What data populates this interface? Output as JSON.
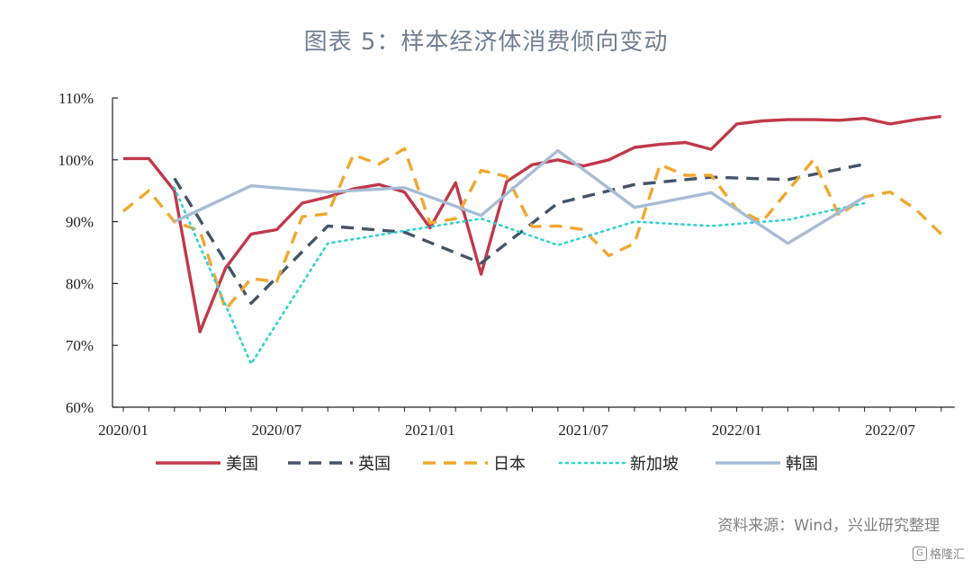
{
  "title": "图表 5：样本经济体消费倾向变动",
  "source": "资料来源：Wind，兴业研究整理",
  "watermark": "格隆汇",
  "chart_data": {
    "type": "line",
    "x_tick_labels": [
      "2020/01",
      "2020/07",
      "2021/01",
      "2021/07",
      "2022/01",
      "2022/07"
    ],
    "y_tick_labels": [
      "60%",
      "70%",
      "80%",
      "90%",
      "100%",
      "110%"
    ],
    "ylim": [
      60,
      110
    ],
    "y_unit": "%",
    "x_range_months": [
      "2020-01",
      "2022-09"
    ],
    "legend_position": "bottom",
    "grid": false,
    "series": [
      {
        "name": "美国",
        "color": "#c0394a",
        "style": "solid",
        "x": [
          "2020-01",
          "2020-02",
          "2020-03",
          "2020-04",
          "2020-05",
          "2020-06",
          "2020-07",
          "2020-08",
          "2020-09",
          "2020-10",
          "2020-11",
          "2020-12",
          "2021-01",
          "2021-02",
          "2021-03",
          "2021-04",
          "2021-05",
          "2021-06",
          "2021-07",
          "2021-08",
          "2021-09",
          "2021-10",
          "2021-11",
          "2021-12",
          "2022-01",
          "2022-02",
          "2022-03",
          "2022-04",
          "2022-05",
          "2022-06",
          "2022-07",
          "2022-08",
          "2022-09"
        ],
        "values": [
          100.2,
          100.2,
          95,
          72.2,
          82.5,
          88,
          88.7,
          93,
          94,
          95.3,
          96,
          94.8,
          89,
          96.3,
          81.5,
          96.5,
          99.2,
          100,
          99,
          100,
          102,
          102.5,
          102.8,
          101.7,
          105.8,
          106.3,
          106.5,
          106.5,
          106.4,
          106.7,
          105.8,
          106.5,
          107
        ]
      },
      {
        "name": "英国",
        "color": "#44546a",
        "style": "dashed",
        "x": [
          "2020-03",
          "2020-06",
          "2020-09",
          "2020-12",
          "2021-03",
          "2021-06",
          "2021-09",
          "2021-12",
          "2022-03",
          "2022-06"
        ],
        "values": [
          97,
          76.8,
          89.3,
          88.3,
          83.3,
          93,
          96,
          97.2,
          96.8,
          99.3
        ]
      },
      {
        "name": "日本",
        "color": "#f0a830",
        "style": "dashed",
        "x": [
          "2020-01",
          "2020-02",
          "2020-03",
          "2020-04",
          "2020-05",
          "2020-06",
          "2020-07",
          "2020-08",
          "2020-09",
          "2020-10",
          "2020-11",
          "2020-12",
          "2021-01",
          "2021-02",
          "2021-03",
          "2021-04",
          "2021-05",
          "2021-06",
          "2021-07",
          "2021-08",
          "2021-09",
          "2021-10",
          "2021-11",
          "2021-12",
          "2022-01",
          "2022-02",
          "2022-03",
          "2022-04",
          "2022-05",
          "2022-06",
          "2022-07",
          "2022-08",
          "2022-09"
        ],
        "values": [
          91.7,
          95,
          90,
          88.5,
          75.8,
          80.8,
          80.3,
          90.8,
          91.3,
          100.8,
          99.3,
          101.8,
          89.8,
          90.5,
          98.3,
          97.3,
          89.2,
          89.3,
          88.7,
          84.5,
          86.5,
          99.2,
          97.5,
          97.5,
          92,
          90,
          95,
          100,
          91,
          94,
          94.8,
          92,
          88
        ]
      },
      {
        "name": "新加坡",
        "color": "#33d1d1",
        "style": "dotted",
        "x": [
          "2020-03",
          "2020-06",
          "2020-09",
          "2020-12",
          "2021-03",
          "2021-06",
          "2021-09",
          "2021-12",
          "2022-03",
          "2022-06"
        ],
        "values": [
          95.5,
          67,
          86.5,
          88.5,
          90.5,
          86.2,
          90,
          89.3,
          90.3,
          93
        ]
      },
      {
        "name": "韩国",
        "color": "#a6bcd6",
        "style": "solid",
        "x": [
          "2020-03",
          "2020-06",
          "2020-09",
          "2020-12",
          "2021-03",
          "2021-06",
          "2021-09",
          "2021-12",
          "2022-03",
          "2022-06"
        ],
        "values": [
          90,
          95.8,
          94.8,
          95.5,
          91,
          101.5,
          92.3,
          94.7,
          86.5,
          94
        ]
      }
    ]
  }
}
